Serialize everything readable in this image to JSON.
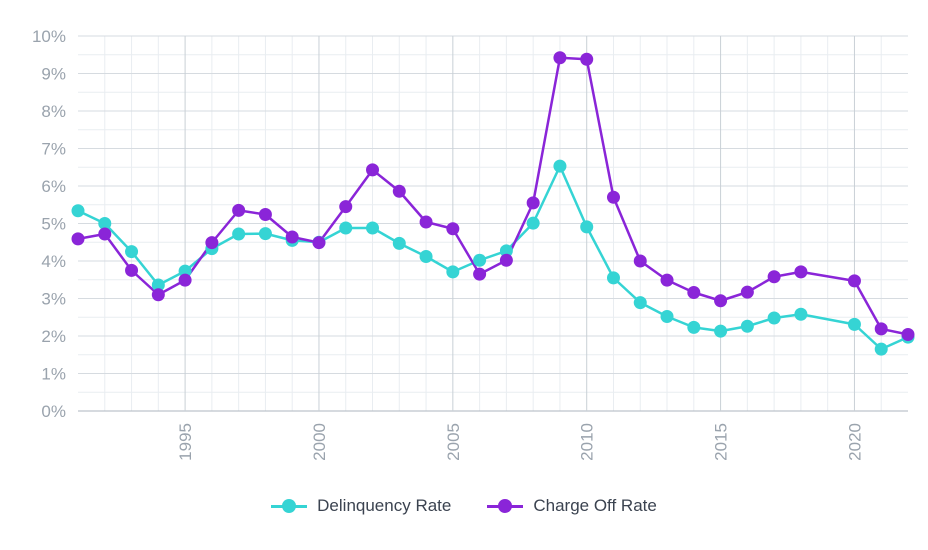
{
  "chart_data": {
    "type": "line",
    "title": "",
    "xlabel": "",
    "ylabel": "",
    "x": [
      1991,
      1992,
      1993,
      1994,
      1995,
      1996,
      1997,
      1998,
      1999,
      2000,
      2001,
      2002,
      2003,
      2004,
      2005,
      2006,
      2007,
      2008,
      2009,
      2010,
      2011,
      2012,
      2013,
      2014,
      2015,
      2016,
      2017,
      2018,
      2020,
      2021,
      2022
    ],
    "xlim": [
      1991,
      2022
    ],
    "ylim": [
      0,
      10
    ],
    "x_ticks": [
      "1995",
      "2000",
      "2005",
      "2010",
      "2015",
      "2020"
    ],
    "y_ticks": [
      "0%",
      "1%",
      "2%",
      "3%",
      "4%",
      "5%",
      "6%",
      "7%",
      "8%",
      "9%",
      "10%"
    ],
    "grid": true,
    "legend_position": "bottom",
    "series": [
      {
        "name": "Delinquency Rate",
        "color": "#35d4d4",
        "values": [
          5.34,
          5.0,
          4.25,
          3.36,
          3.73,
          4.33,
          4.72,
          4.73,
          4.55,
          4.5,
          4.88,
          4.88,
          4.47,
          4.12,
          3.71,
          4.02,
          4.27,
          5.01,
          6.53,
          4.91,
          3.55,
          2.89,
          2.52,
          2.23,
          2.13,
          2.26,
          2.48,
          2.58,
          2.31,
          1.65,
          1.97
        ]
      },
      {
        "name": "Charge Off Rate",
        "color": "#8a25d8",
        "values": [
          4.59,
          4.72,
          3.75,
          3.1,
          3.49,
          4.49,
          5.35,
          5.24,
          4.64,
          4.49,
          5.45,
          6.43,
          5.86,
          5.04,
          4.86,
          3.65,
          4.02,
          5.55,
          9.42,
          9.38,
          5.7,
          4.0,
          3.49,
          3.16,
          2.94,
          3.17,
          3.58,
          3.71,
          3.47,
          2.19,
          2.04
        ]
      }
    ]
  }
}
